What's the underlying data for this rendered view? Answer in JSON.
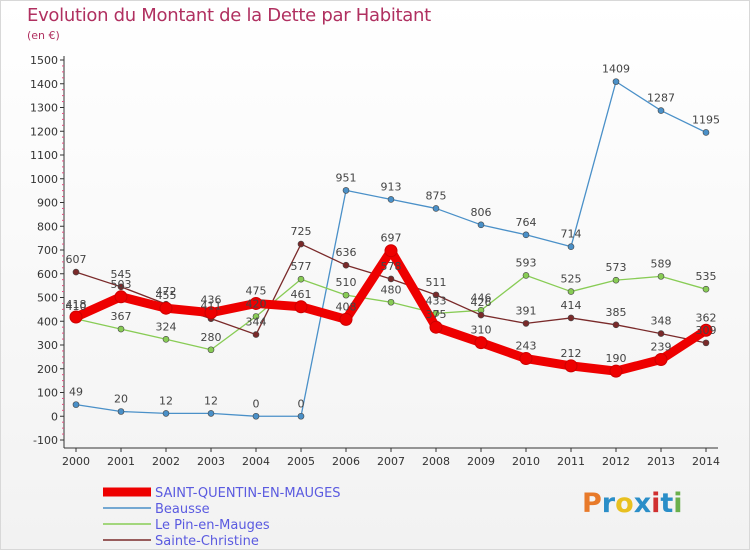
{
  "title": "Evolution du Montant de la Dette par Habitant",
  "subtitle": "(en €)",
  "logo": {
    "text": "Proxiti",
    "colors": [
      "#e87a2a",
      "#2a8ec8",
      "#e8c020",
      "#2a8ec8",
      "#d03030",
      "#2a8ec8",
      "#6ab04c"
    ]
  },
  "chart_data": {
    "type": "line",
    "title": "Evolution du Montant de la Dette par Habitant",
    "ylabel": "(en €)",
    "xlabel": "",
    "x": [
      "2000",
      "2001",
      "2002",
      "2003",
      "2004",
      "2005",
      "2006",
      "2007",
      "2008",
      "2009",
      "2010",
      "2011",
      "2012",
      "2013",
      "2014"
    ],
    "ylim": [
      -100,
      1500
    ],
    "yticks": [
      -100,
      0,
      100,
      200,
      300,
      400,
      500,
      600,
      700,
      800,
      900,
      1000,
      1100,
      1200,
      1300,
      1400,
      1500
    ],
    "grid": false,
    "legend": "bottom-left",
    "series": [
      {
        "name": "SAINT-QUENTIN-EN-MAUGES",
        "color": "#ee0000",
        "values": [
          418,
          503,
          455,
          436,
          475,
          461,
          408,
          697,
          375,
          310,
          243,
          212,
          190,
          239,
          362
        ],
        "labels": true
      },
      {
        "name": "Beausse",
        "color": "#4a90c8",
        "values": [
          49,
          20,
          12,
          12,
          0,
          0,
          951,
          913,
          875,
          806,
          764,
          714,
          1409,
          1287,
          1195
        ],
        "labels": true
      },
      {
        "name": "Le Pin-en-Mauges",
        "color": "#88cc55",
        "values": [
          410,
          367,
          324,
          280,
          420,
          577,
          510,
          480,
          433,
          446,
          593,
          525,
          573,
          589,
          535
        ],
        "labels": true
      },
      {
        "name": "Sainte-Christine",
        "color": "#7a2a2a",
        "values": [
          607,
          545,
          472,
          411,
          344,
          725,
          636,
          578,
          511,
          426,
          391,
          414,
          385,
          348,
          309
        ],
        "labels": true
      }
    ]
  }
}
